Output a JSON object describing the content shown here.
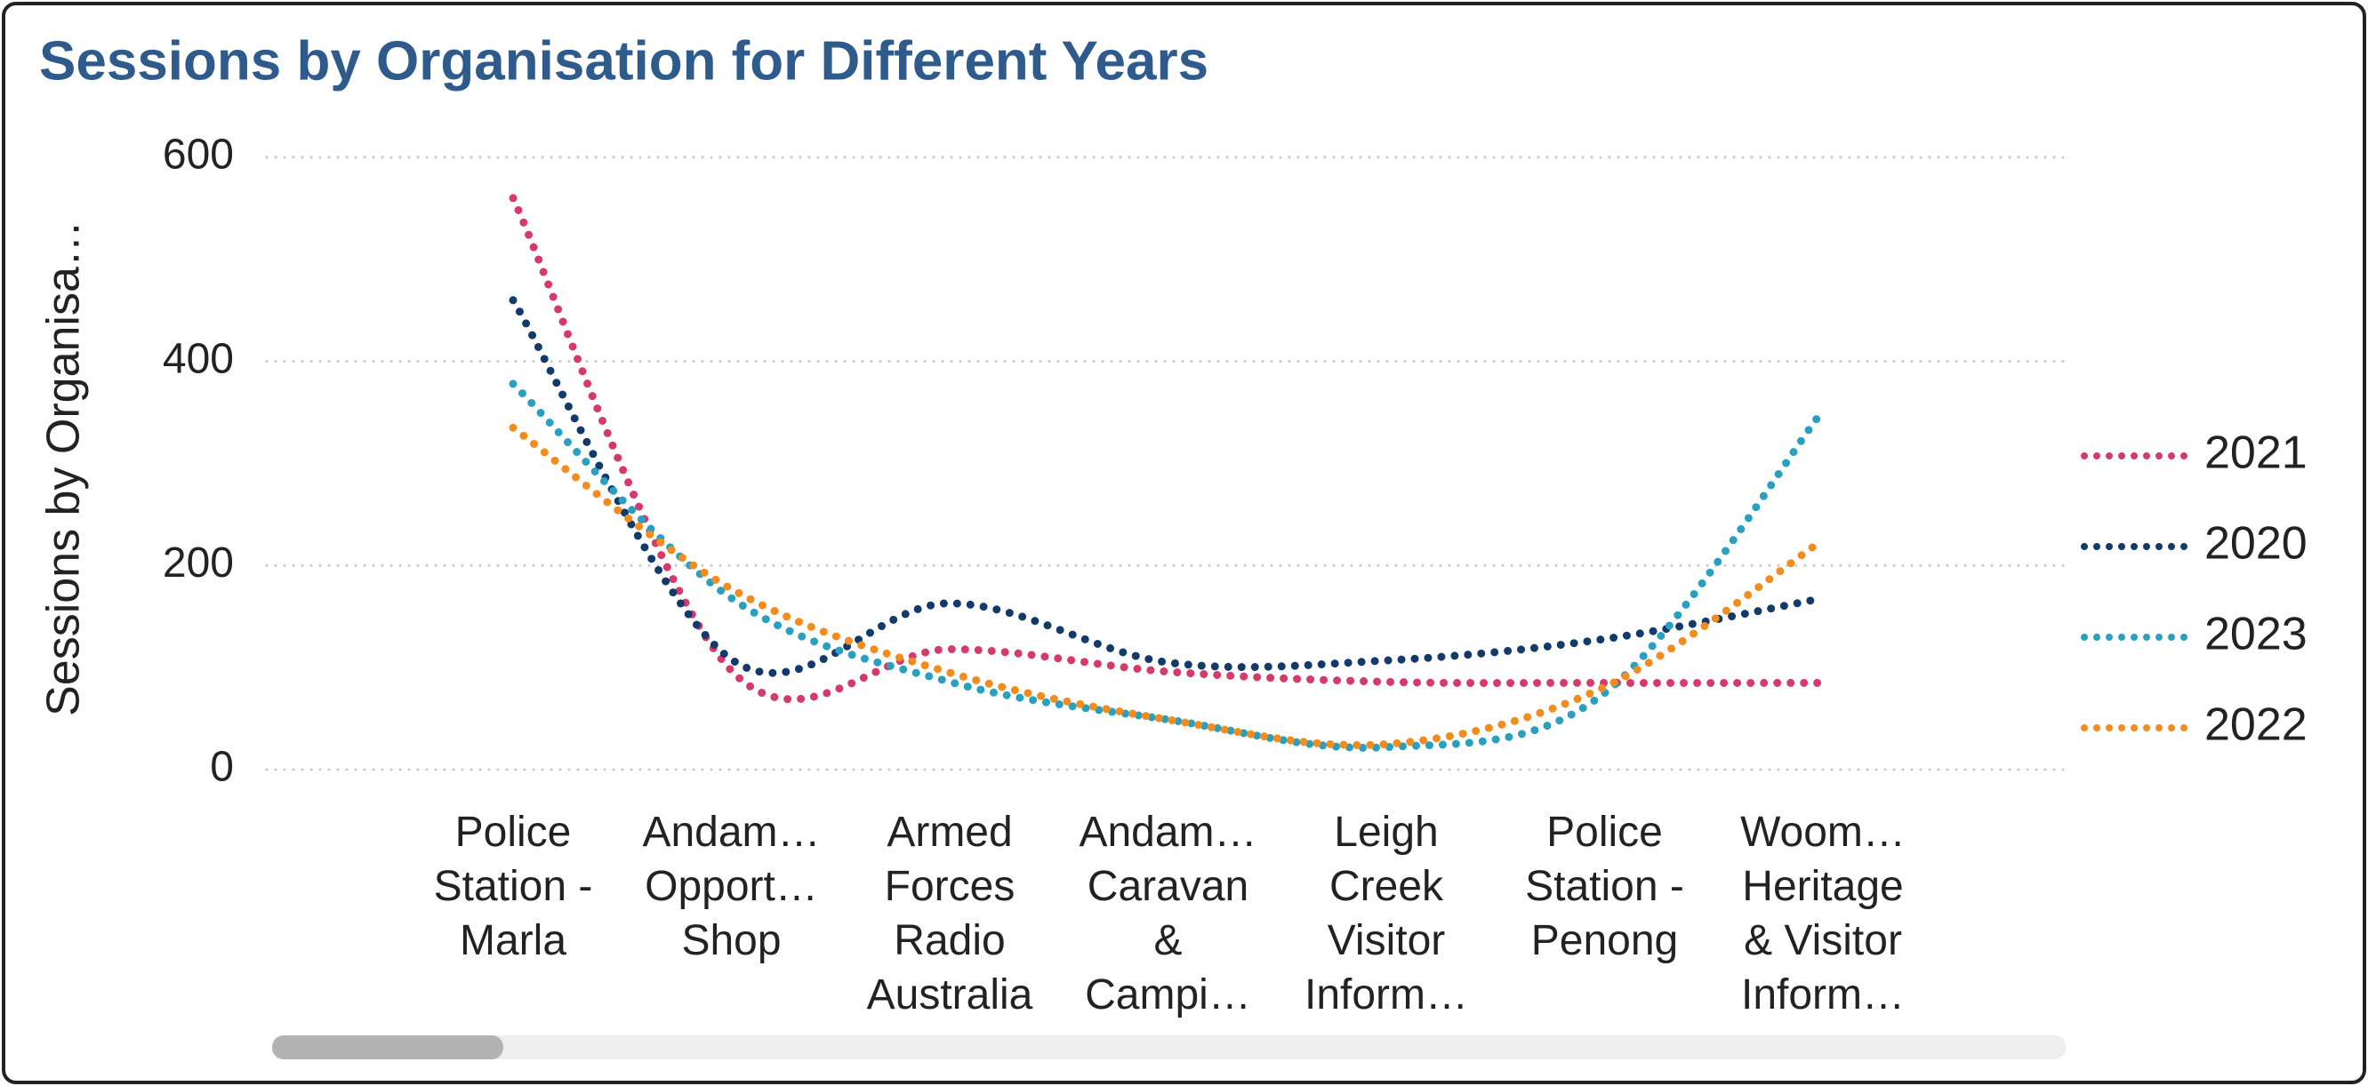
{
  "chart_data": {
    "type": "line",
    "title": "Sessions by Organisation for Different Years",
    "y_label": "Sessions by Organisa…",
    "categories": [
      "Police\nStation -\nMarla",
      "Andam…\nOpport…\nShop",
      "Armed\nForces\nRadio\nAustralia",
      "Andam…\nCaravan\n&\nCampi…",
      "Leigh\nCreek\nVisitor\nInform…",
      "Police\nStation -\nPenong",
      "Woom…\nHeritage\n& Visitor\nInform…"
    ],
    "series": [
      {
        "name": "2021",
        "color": "#d63a6b",
        "values": [
          560,
          97,
          118,
          96,
          86,
          85,
          85
        ]
      },
      {
        "name": "2020",
        "color": "#123a6b",
        "values": [
          460,
          108,
          163,
          105,
          107,
          128,
          168
        ]
      },
      {
        "name": "2023",
        "color": "#2aa0c0",
        "values": [
          378,
          168,
          86,
          49,
          22,
          75,
          352
        ]
      },
      {
        "name": "2022",
        "color": "#f28c1c",
        "values": [
          335,
          177,
          95,
          49,
          25,
          81,
          225
        ]
      }
    ],
    "ylim": [
      0,
      600
    ],
    "yticks": [
      0,
      200,
      400,
      600
    ],
    "grid": true,
    "legend": "right"
  }
}
